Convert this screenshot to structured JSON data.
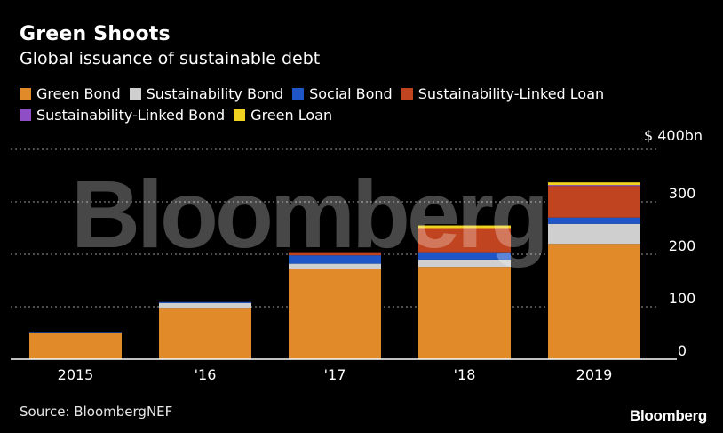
{
  "chart_data": {
    "type": "bar",
    "stacked": true,
    "title": "Green Shoots",
    "subtitle": "Global issuance of sustainable debt",
    "categories": [
      "2015",
      "'16",
      "'17",
      "'18",
      "2019"
    ],
    "series": [
      {
        "name": "Green Bond",
        "color": "#e08a2a",
        "values": [
          50,
          98,
          172,
          176,
          220
        ]
      },
      {
        "name": "Sustainability Bond",
        "color": "#cfcfcf",
        "values": [
          1,
          9,
          10,
          14,
          38
        ]
      },
      {
        "name": "Social Bond",
        "color": "#1e56c8",
        "values": [
          1,
          2,
          16,
          14,
          12
        ]
      },
      {
        "name": "Sustainability-Linked Loan",
        "color": "#c0441f",
        "values": [
          0,
          0,
          6,
          46,
          60
        ]
      },
      {
        "name": "Sustainability-Linked Bond",
        "color": "#8e4fc6",
        "values": [
          0,
          0,
          0,
          0,
          2
        ]
      },
      {
        "name": "Green Loan",
        "color": "#f0d320",
        "values": [
          0,
          0,
          0,
          5,
          5
        ]
      }
    ],
    "ylim": [
      0,
      400
    ],
    "yticks": [
      0,
      100,
      200,
      300,
      400
    ],
    "ytick_labels": [
      "0",
      "100",
      "200",
      "300",
      "$ 400bn"
    ],
    "grid": true,
    "legend_position": "top-left",
    "watermark": "Bloomberg"
  },
  "source": "Source: BloombergNEF",
  "brand": "Bloomberg"
}
